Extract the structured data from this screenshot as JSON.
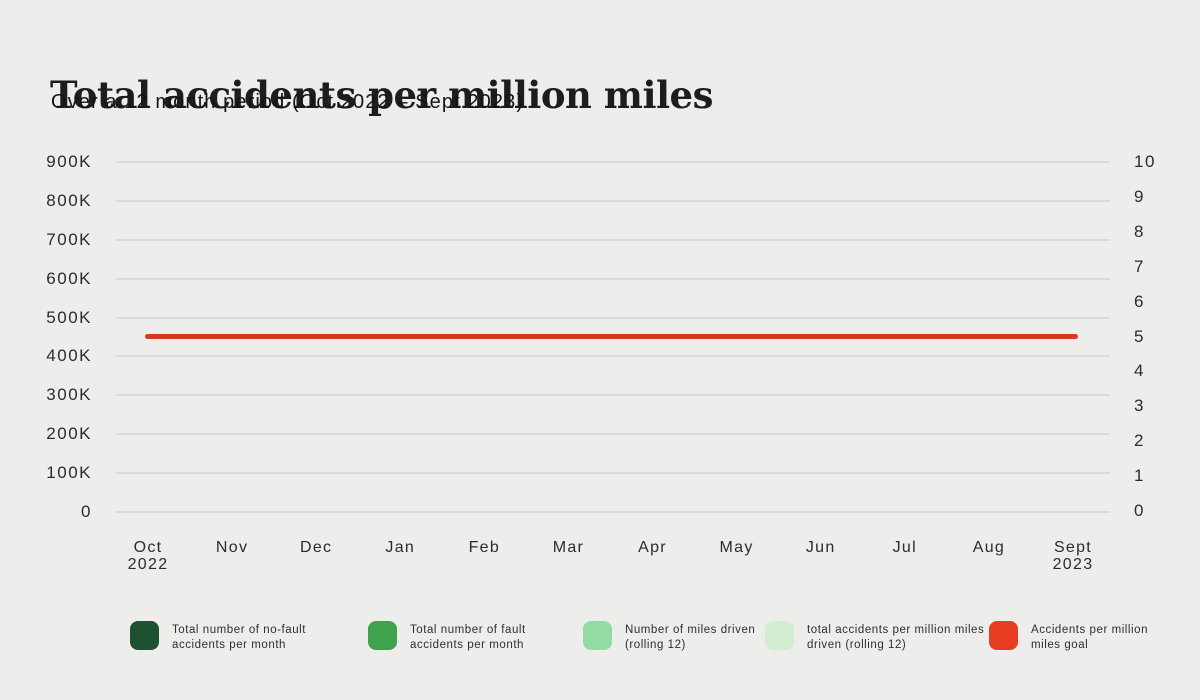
{
  "header": {
    "title": "Total accidents per million miles",
    "subtitle": "Over a 12 month period  (Oct 2022 – Sept 2023)"
  },
  "colors": {
    "background": "#EDEDEC",
    "gridline": "#DBDBD9",
    "goal_line": "#D53A22",
    "tick_text": "#2B2B2B"
  },
  "chart_data": {
    "type": "line",
    "title": "Total accidents per million miles",
    "subtitle": "Over a 12 month period (Oct 2022 – Sept 2023)",
    "categories": [
      "Oct 2022",
      "Nov",
      "Dec",
      "Jan",
      "Feb",
      "Mar",
      "Apr",
      "May",
      "Jun",
      "Jul",
      "Aug",
      "Sept 2023"
    ],
    "x_tick_lines": [
      [
        "Oct",
        "2022"
      ],
      [
        "Nov"
      ],
      [
        "Dec"
      ],
      [
        "Jan"
      ],
      [
        "Feb"
      ],
      [
        "Mar"
      ],
      [
        "Apr"
      ],
      [
        "May"
      ],
      [
        "Jun"
      ],
      [
        "Jul"
      ],
      [
        "Aug"
      ],
      [
        "Sept",
        "2023"
      ]
    ],
    "left_axis": {
      "tick_labels": [
        "900K",
        "800K",
        "700K",
        "600K",
        "500K",
        "400K",
        "300K",
        "200K",
        "100K",
        "0"
      ],
      "range": [
        0,
        900000
      ]
    },
    "right_axis": {
      "tick_labels": [
        "10",
        "9",
        "8",
        "7",
        "6",
        "5",
        "4",
        "3",
        "2",
        "1",
        "0"
      ],
      "range": [
        0,
        10
      ]
    },
    "grid": true,
    "legend_position": "bottom",
    "series": [
      {
        "name": "Total number of no-fault accidents per month",
        "color": "#1E5132",
        "axis": "left",
        "values": []
      },
      {
        "name": "Total number of fault accidents per month",
        "color": "#3FA24C",
        "axis": "left",
        "values": []
      },
      {
        "name": "Number of miles driven (rolling 12)",
        "color": "#92DBA5",
        "axis": "left",
        "values": []
      },
      {
        "name": "total accidents per million miles driven (rolling 12)",
        "color": "#D3EDD3",
        "axis": "left",
        "values": []
      },
      {
        "name": "Accidents per million miles goal",
        "color": "#D53A22",
        "legend_color": "#E63D20",
        "axis": "right",
        "values": [
          5,
          5,
          5,
          5,
          5,
          5,
          5,
          5,
          5,
          5,
          5,
          5
        ]
      }
    ]
  }
}
